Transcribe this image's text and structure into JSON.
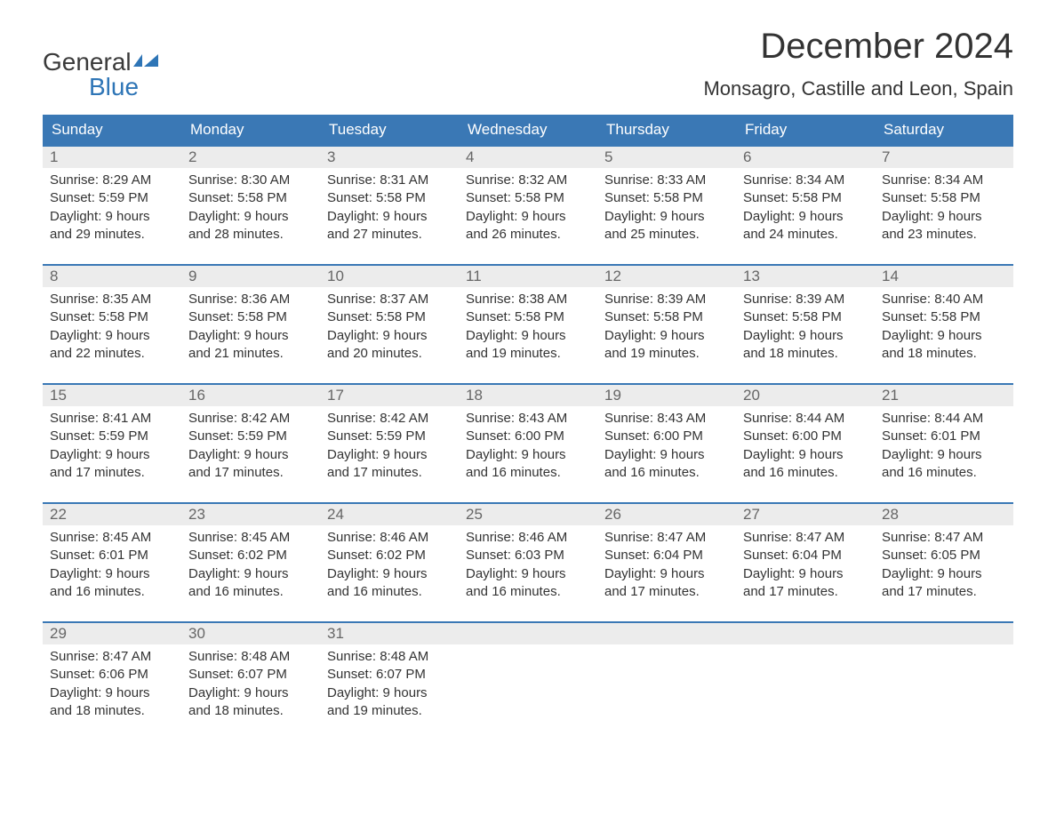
{
  "logo": {
    "line1": "General",
    "line2": "Blue",
    "flag_color": "#2e75b6"
  },
  "title": "December 2024",
  "location": "Monsagro, Castille and Leon, Spain",
  "colors": {
    "header_bg": "#3a78b5",
    "header_text": "#ffffff",
    "daynum_bg": "#ececec",
    "daynum_text": "#666666",
    "body_text": "#333333",
    "week_border": "#3a78b5",
    "logo_gray": "#3a3a3a",
    "logo_blue": "#2e75b6",
    "page_bg": "#ffffff"
  },
  "typography": {
    "title_fontsize": 40,
    "location_fontsize": 22,
    "dow_fontsize": 17,
    "daynum_fontsize": 17,
    "cell_fontsize": 15,
    "logo_fontsize": 28
  },
  "day_names": [
    "Sunday",
    "Monday",
    "Tuesday",
    "Wednesday",
    "Thursday",
    "Friday",
    "Saturday"
  ],
  "weeks": [
    [
      {
        "n": "1",
        "sr": "Sunrise: 8:29 AM",
        "ss": "Sunset: 5:59 PM",
        "d1": "Daylight: 9 hours",
        "d2": "and 29 minutes."
      },
      {
        "n": "2",
        "sr": "Sunrise: 8:30 AM",
        "ss": "Sunset: 5:58 PM",
        "d1": "Daylight: 9 hours",
        "d2": "and 28 minutes."
      },
      {
        "n": "3",
        "sr": "Sunrise: 8:31 AM",
        "ss": "Sunset: 5:58 PM",
        "d1": "Daylight: 9 hours",
        "d2": "and 27 minutes."
      },
      {
        "n": "4",
        "sr": "Sunrise: 8:32 AM",
        "ss": "Sunset: 5:58 PM",
        "d1": "Daylight: 9 hours",
        "d2": "and 26 minutes."
      },
      {
        "n": "5",
        "sr": "Sunrise: 8:33 AM",
        "ss": "Sunset: 5:58 PM",
        "d1": "Daylight: 9 hours",
        "d2": "and 25 minutes."
      },
      {
        "n": "6",
        "sr": "Sunrise: 8:34 AM",
        "ss": "Sunset: 5:58 PM",
        "d1": "Daylight: 9 hours",
        "d2": "and 24 minutes."
      },
      {
        "n": "7",
        "sr": "Sunrise: 8:34 AM",
        "ss": "Sunset: 5:58 PM",
        "d1": "Daylight: 9 hours",
        "d2": "and 23 minutes."
      }
    ],
    [
      {
        "n": "8",
        "sr": "Sunrise: 8:35 AM",
        "ss": "Sunset: 5:58 PM",
        "d1": "Daylight: 9 hours",
        "d2": "and 22 minutes."
      },
      {
        "n": "9",
        "sr": "Sunrise: 8:36 AM",
        "ss": "Sunset: 5:58 PM",
        "d1": "Daylight: 9 hours",
        "d2": "and 21 minutes."
      },
      {
        "n": "10",
        "sr": "Sunrise: 8:37 AM",
        "ss": "Sunset: 5:58 PM",
        "d1": "Daylight: 9 hours",
        "d2": "and 20 minutes."
      },
      {
        "n": "11",
        "sr": "Sunrise: 8:38 AM",
        "ss": "Sunset: 5:58 PM",
        "d1": "Daylight: 9 hours",
        "d2": "and 19 minutes."
      },
      {
        "n": "12",
        "sr": "Sunrise: 8:39 AM",
        "ss": "Sunset: 5:58 PM",
        "d1": "Daylight: 9 hours",
        "d2": "and 19 minutes."
      },
      {
        "n": "13",
        "sr": "Sunrise: 8:39 AM",
        "ss": "Sunset: 5:58 PM",
        "d1": "Daylight: 9 hours",
        "d2": "and 18 minutes."
      },
      {
        "n": "14",
        "sr": "Sunrise: 8:40 AM",
        "ss": "Sunset: 5:58 PM",
        "d1": "Daylight: 9 hours",
        "d2": "and 18 minutes."
      }
    ],
    [
      {
        "n": "15",
        "sr": "Sunrise: 8:41 AM",
        "ss": "Sunset: 5:59 PM",
        "d1": "Daylight: 9 hours",
        "d2": "and 17 minutes."
      },
      {
        "n": "16",
        "sr": "Sunrise: 8:42 AM",
        "ss": "Sunset: 5:59 PM",
        "d1": "Daylight: 9 hours",
        "d2": "and 17 minutes."
      },
      {
        "n": "17",
        "sr": "Sunrise: 8:42 AM",
        "ss": "Sunset: 5:59 PM",
        "d1": "Daylight: 9 hours",
        "d2": "and 17 minutes."
      },
      {
        "n": "18",
        "sr": "Sunrise: 8:43 AM",
        "ss": "Sunset: 6:00 PM",
        "d1": "Daylight: 9 hours",
        "d2": "and 16 minutes."
      },
      {
        "n": "19",
        "sr": "Sunrise: 8:43 AM",
        "ss": "Sunset: 6:00 PM",
        "d1": "Daylight: 9 hours",
        "d2": "and 16 minutes."
      },
      {
        "n": "20",
        "sr": "Sunrise: 8:44 AM",
        "ss": "Sunset: 6:00 PM",
        "d1": "Daylight: 9 hours",
        "d2": "and 16 minutes."
      },
      {
        "n": "21",
        "sr": "Sunrise: 8:44 AM",
        "ss": "Sunset: 6:01 PM",
        "d1": "Daylight: 9 hours",
        "d2": "and 16 minutes."
      }
    ],
    [
      {
        "n": "22",
        "sr": "Sunrise: 8:45 AM",
        "ss": "Sunset: 6:01 PM",
        "d1": "Daylight: 9 hours",
        "d2": "and 16 minutes."
      },
      {
        "n": "23",
        "sr": "Sunrise: 8:45 AM",
        "ss": "Sunset: 6:02 PM",
        "d1": "Daylight: 9 hours",
        "d2": "and 16 minutes."
      },
      {
        "n": "24",
        "sr": "Sunrise: 8:46 AM",
        "ss": "Sunset: 6:02 PM",
        "d1": "Daylight: 9 hours",
        "d2": "and 16 minutes."
      },
      {
        "n": "25",
        "sr": "Sunrise: 8:46 AM",
        "ss": "Sunset: 6:03 PM",
        "d1": "Daylight: 9 hours",
        "d2": "and 16 minutes."
      },
      {
        "n": "26",
        "sr": "Sunrise: 8:47 AM",
        "ss": "Sunset: 6:04 PM",
        "d1": "Daylight: 9 hours",
        "d2": "and 17 minutes."
      },
      {
        "n": "27",
        "sr": "Sunrise: 8:47 AM",
        "ss": "Sunset: 6:04 PM",
        "d1": "Daylight: 9 hours",
        "d2": "and 17 minutes."
      },
      {
        "n": "28",
        "sr": "Sunrise: 8:47 AM",
        "ss": "Sunset: 6:05 PM",
        "d1": "Daylight: 9 hours",
        "d2": "and 17 minutes."
      }
    ],
    [
      {
        "n": "29",
        "sr": "Sunrise: 8:47 AM",
        "ss": "Sunset: 6:06 PM",
        "d1": "Daylight: 9 hours",
        "d2": "and 18 minutes."
      },
      {
        "n": "30",
        "sr": "Sunrise: 8:48 AM",
        "ss": "Sunset: 6:07 PM",
        "d1": "Daylight: 9 hours",
        "d2": "and 18 minutes."
      },
      {
        "n": "31",
        "sr": "Sunrise: 8:48 AM",
        "ss": "Sunset: 6:07 PM",
        "d1": "Daylight: 9 hours",
        "d2": "and 19 minutes."
      },
      {
        "n": "",
        "sr": "",
        "ss": "",
        "d1": "",
        "d2": ""
      },
      {
        "n": "",
        "sr": "",
        "ss": "",
        "d1": "",
        "d2": ""
      },
      {
        "n": "",
        "sr": "",
        "ss": "",
        "d1": "",
        "d2": ""
      },
      {
        "n": "",
        "sr": "",
        "ss": "",
        "d1": "",
        "d2": ""
      }
    ]
  ]
}
